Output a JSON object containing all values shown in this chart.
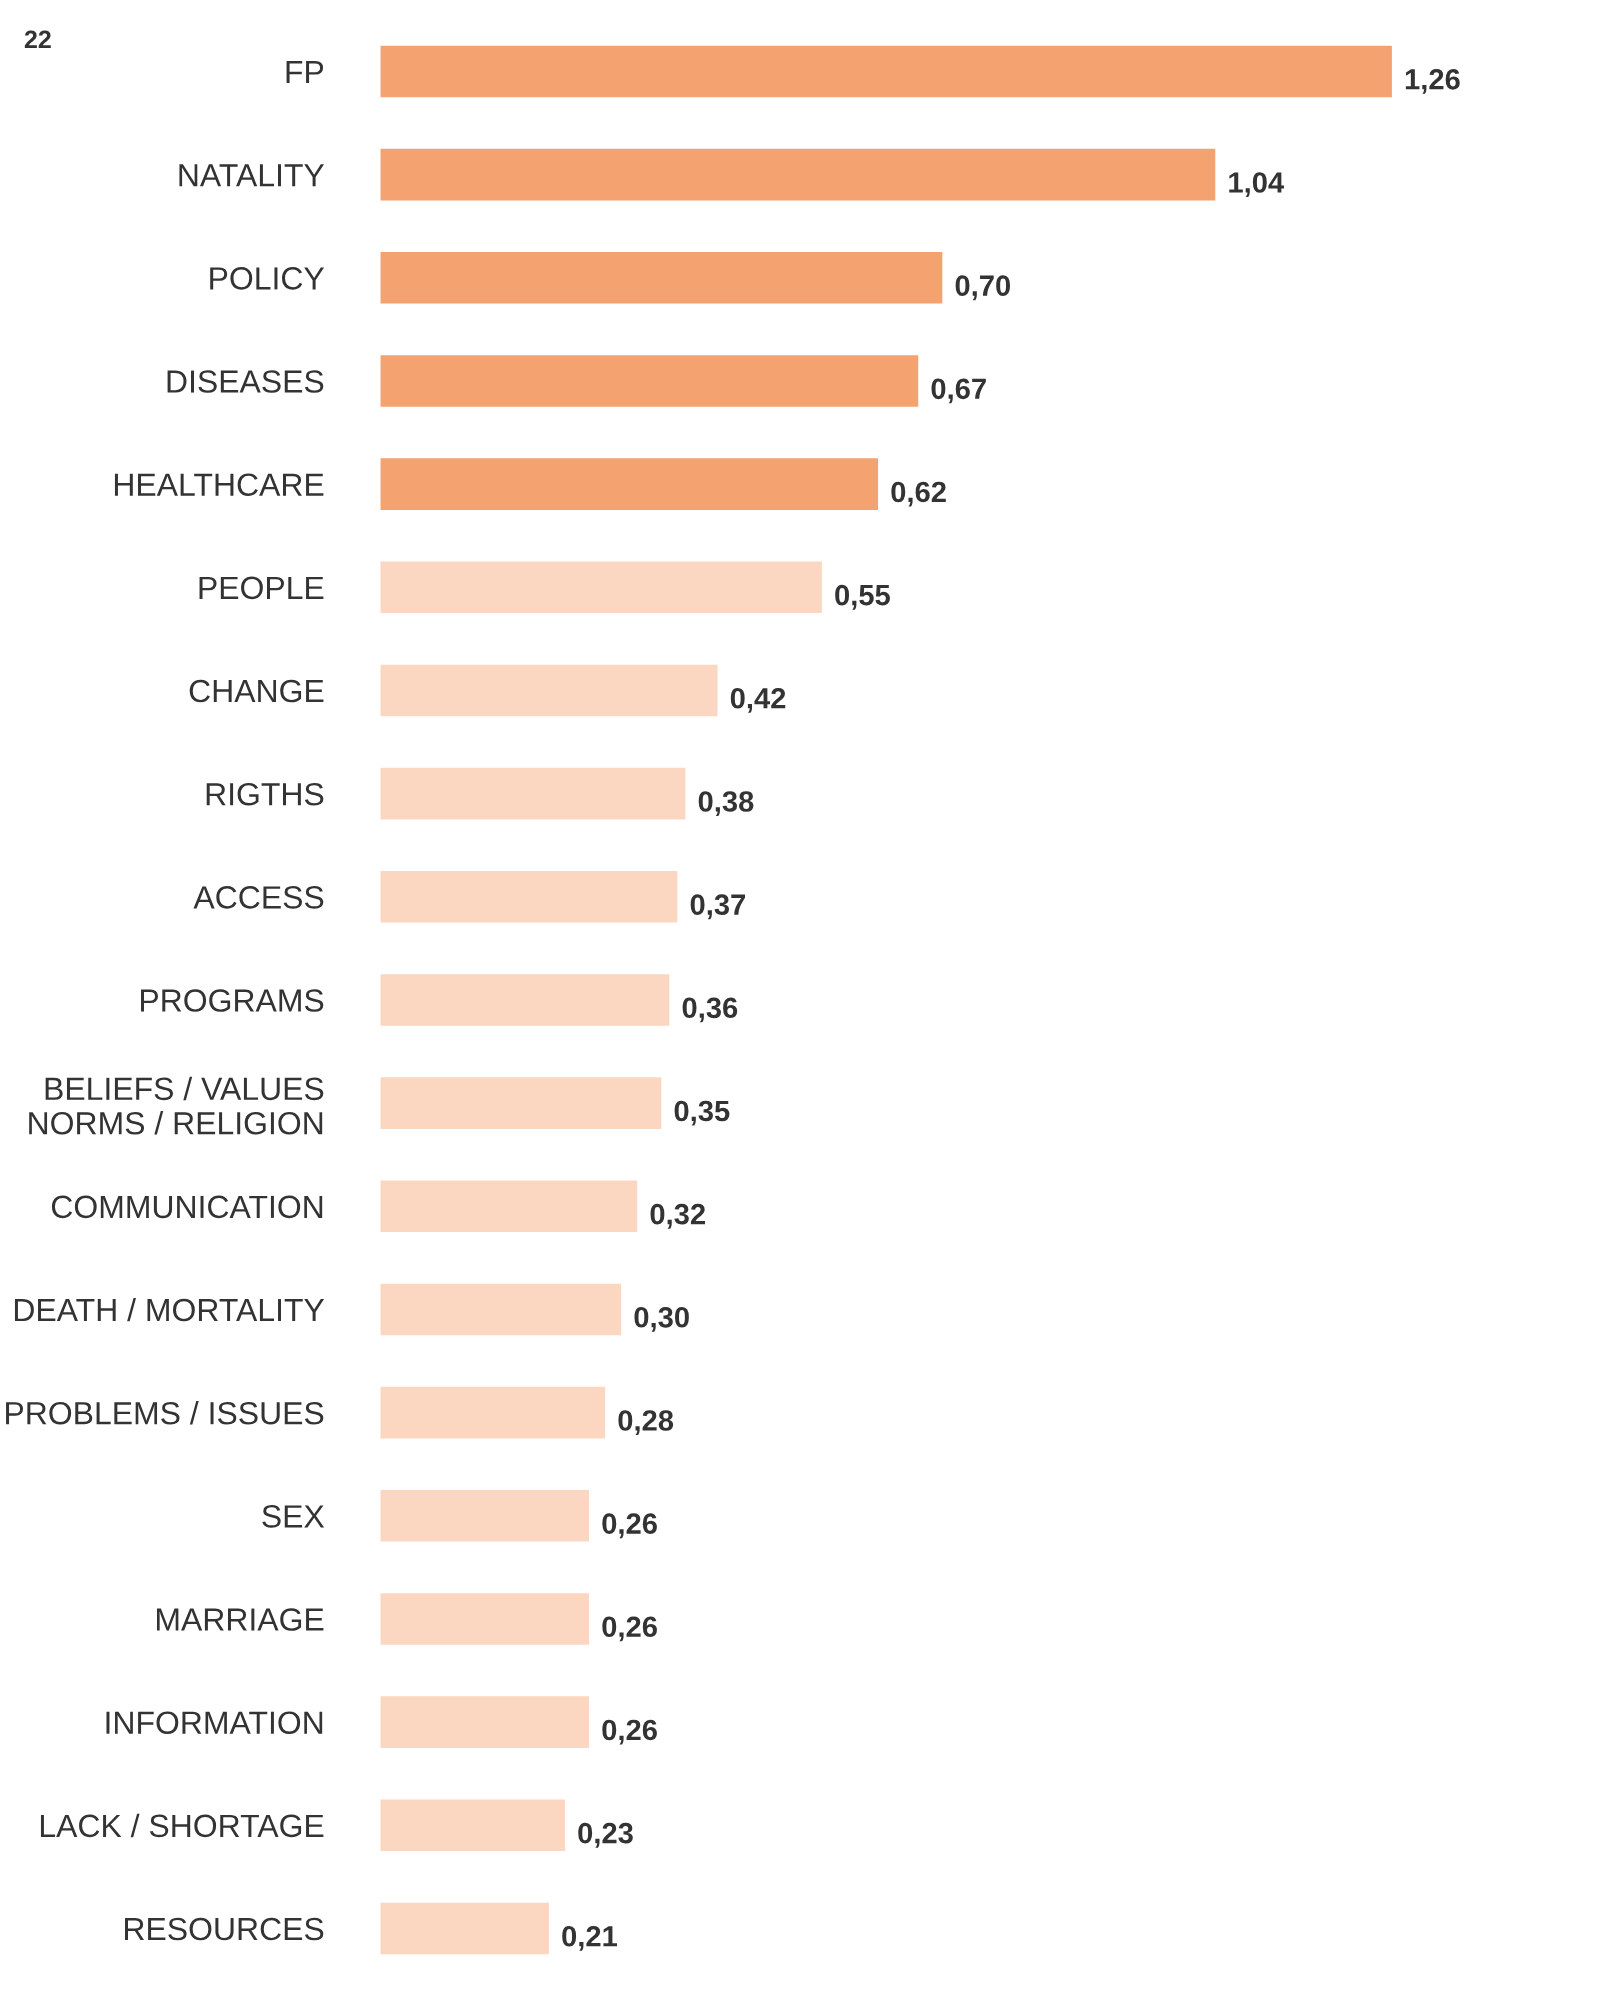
{
  "chart_data": {
    "type": "bar",
    "orientation": "horizontal",
    "categories": [
      "FP",
      "NATALITY",
      "POLICY",
      "DISEASES",
      "HEALTHCARE",
      "PEOPLE",
      "CHANGE",
      "RIGTHS",
      "ACCESS",
      "PROGRAMS",
      "BELIEFS / VALUES\nNORMS / RELIGION",
      "COMMUNICATION",
      "DEATH / MORTALITY",
      "PROBLEMS / ISSUES",
      "SEX",
      "MARRIAGE",
      "INFORMATION",
      "LACK / SHORTAGE",
      "RESOURCES"
    ],
    "values": [
      1.26,
      1.04,
      0.7,
      0.67,
      0.62,
      0.55,
      0.42,
      0.38,
      0.37,
      0.36,
      0.35,
      0.32,
      0.3,
      0.28,
      0.26,
      0.26,
      0.26,
      0.23,
      0.21
    ],
    "value_labels": [
      "1,26",
      "1,04",
      "0,70",
      "0,67",
      "0,62",
      "0,55",
      "0,42",
      "0,38",
      "0,37",
      "0,36",
      "0,35",
      "0,32",
      "0,30",
      "0,28",
      "0,26",
      "0,26",
      "0,26",
      "0,23",
      "0,21"
    ],
    "colors": [
      "#f5a271",
      "#f5a271",
      "#f5a271",
      "#f5a271",
      "#f5a271",
      "#fbd6c1",
      "#fbd6c1",
      "#fbd6c1",
      "#fbd6c1",
      "#fbd6c1",
      "#fbd6c1",
      "#fbd6c1",
      "#fbd6c1",
      "#fbd6c1",
      "#fbd6c1",
      "#fbd6c1",
      "#fbd6c1",
      "#fbd6c1",
      "#fbd6c1"
    ],
    "annotations": [
      "22"
    ],
    "grid": false,
    "legend": false
  }
}
